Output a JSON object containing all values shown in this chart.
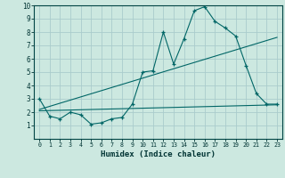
{
  "bg_color": "#cce8e0",
  "grid_color": "#aacccc",
  "line_color": "#006666",
  "xlabel": "Humidex (Indice chaleur)",
  "xlim": [
    -0.5,
    23.5
  ],
  "ylim": [
    0,
    10
  ],
  "xticks": [
    0,
    1,
    2,
    3,
    4,
    5,
    6,
    7,
    8,
    9,
    10,
    11,
    12,
    13,
    14,
    15,
    16,
    17,
    18,
    19,
    20,
    21,
    22,
    23
  ],
  "yticks": [
    1,
    2,
    3,
    4,
    5,
    6,
    7,
    8,
    9,
    10
  ],
  "series1_x": [
    0,
    1,
    2,
    3,
    4,
    5,
    6,
    7,
    8,
    9,
    10,
    11,
    12,
    13,
    14,
    15,
    16,
    17,
    18,
    19,
    20,
    21,
    22,
    23
  ],
  "series1_y": [
    3.0,
    1.7,
    1.5,
    2.0,
    1.8,
    1.1,
    1.2,
    1.5,
    1.6,
    2.6,
    5.0,
    5.1,
    8.0,
    5.6,
    7.5,
    9.6,
    9.9,
    8.8,
    8.3,
    7.7,
    5.5,
    3.4,
    2.6,
    2.6
  ],
  "flat_line_x": [
    0,
    23
  ],
  "flat_line_y": [
    2.1,
    2.55
  ],
  "trend_line_x": [
    0,
    23
  ],
  "trend_line_y": [
    2.2,
    7.6
  ]
}
